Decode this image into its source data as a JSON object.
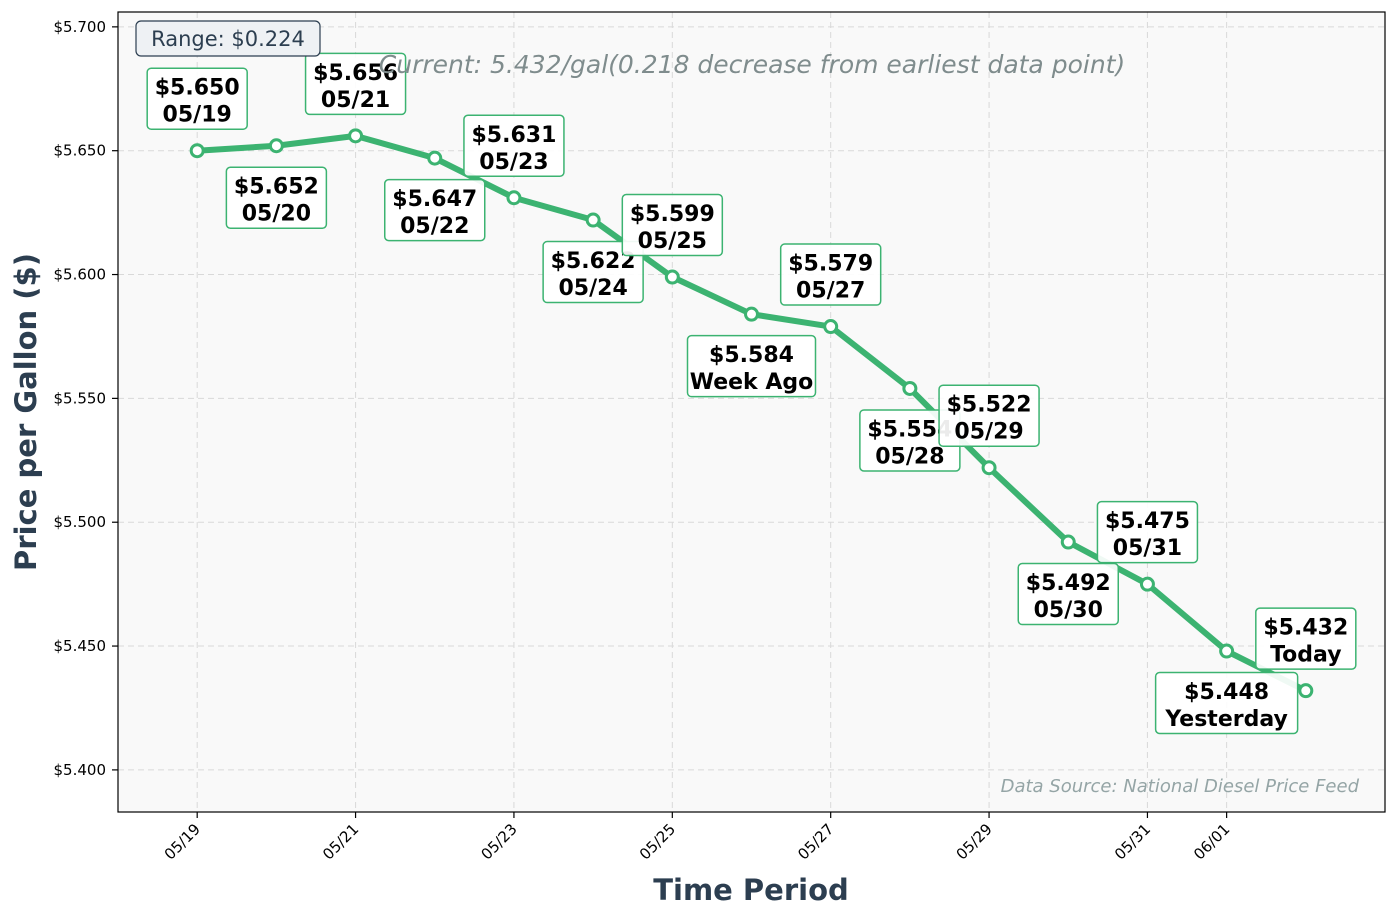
{
  "chart_data": {
    "type": "line",
    "title": "",
    "xlabel": "Time Period",
    "ylabel": "Price per Gallon ($)",
    "ylim": [
      5.383,
      5.706
    ],
    "y_ticks": [
      5.4,
      5.45,
      5.5,
      5.55,
      5.6,
      5.65,
      5.7
    ],
    "y_tick_labels": [
      "$5.400",
      "$5.450",
      "$5.500",
      "$5.550",
      "$5.600",
      "$5.650",
      "$5.700"
    ],
    "x_range": [
      "05/18",
      "06/03"
    ],
    "x_ticks": [
      "05/19",
      "05/21",
      "05/23",
      "05/25",
      "05/27",
      "05/29",
      "05/31",
      "06/01"
    ],
    "grid": true,
    "line_color": "#3cb371",
    "series": [
      {
        "name": "",
        "points": [
          {
            "date": "05/19",
            "value": 5.65,
            "label_price": "$5.650",
            "label_day": "05/19",
            "label_pos": "above"
          },
          {
            "date": "05/20",
            "value": 5.652,
            "label_price": "$5.652",
            "label_day": "05/20",
            "label_pos": "below"
          },
          {
            "date": "05/21",
            "value": 5.656,
            "label_price": "$5.656",
            "label_day": "05/21",
            "label_pos": "above"
          },
          {
            "date": "05/22",
            "value": 5.647,
            "label_price": "$5.647",
            "label_day": "05/22",
            "label_pos": "below"
          },
          {
            "date": "05/23",
            "value": 5.631,
            "label_price": "$5.631",
            "label_day": "05/23",
            "label_pos": "above"
          },
          {
            "date": "05/24",
            "value": 5.622,
            "label_price": "$5.622",
            "label_day": "05/24",
            "label_pos": "below"
          },
          {
            "date": "05/25",
            "value": 5.599,
            "label_price": "$5.599",
            "label_day": "05/25",
            "label_pos": "above"
          },
          {
            "date": "05/26",
            "value": 5.584,
            "label_price": "$5.584",
            "label_day": "Week Ago",
            "label_pos": "below"
          },
          {
            "date": "05/27",
            "value": 5.579,
            "label_price": "$5.579",
            "label_day": "05/27",
            "label_pos": "above"
          },
          {
            "date": "05/28",
            "value": 5.554,
            "label_price": "$5.554",
            "label_day": "05/28",
            "label_pos": "below"
          },
          {
            "date": "05/29",
            "value": 5.522,
            "label_price": "$5.522",
            "label_day": "05/29",
            "label_pos": "above"
          },
          {
            "date": "05/30",
            "value": 5.492,
            "label_price": "$5.492",
            "label_day": "05/30",
            "label_pos": "below"
          },
          {
            "date": "05/31",
            "value": 5.475,
            "label_price": "$5.475",
            "label_day": "05/31",
            "label_pos": "above"
          },
          {
            "date": "06/01",
            "value": 5.448,
            "label_price": "$5.448",
            "label_day": "Yesterday",
            "label_pos": "below"
          },
          {
            "date": "06/02",
            "value": 5.432,
            "label_price": "$5.432",
            "label_day": "Today",
            "label_pos": "above"
          }
        ]
      }
    ],
    "annotations": {
      "range": "Range: $0.224",
      "current": "Current: 5.432/gal(0.218 decrease from earliest data point)",
      "source": "Data Source: National Diesel Price Feed"
    }
  }
}
